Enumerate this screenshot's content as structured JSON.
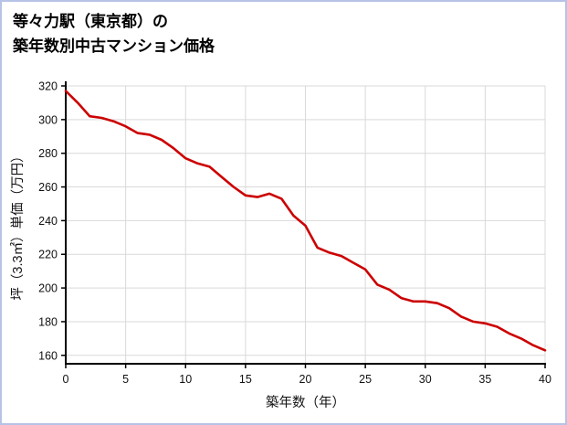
{
  "frame": {
    "border_color": "#b7c3e6"
  },
  "title": {
    "line1": "等々力駅（東京都）の",
    "line2": "築年数別中古マンション価格"
  },
  "chart_data": {
    "type": "line",
    "title": "等々力駅（東京都）の築年数別中古マンション価格",
    "xlabel": "築年数（年）",
    "ylabel": "坪（3.3㎡）単価（万円）",
    "x": [
      0,
      1,
      2,
      3,
      4,
      5,
      6,
      7,
      8,
      9,
      10,
      11,
      12,
      13,
      14,
      15,
      16,
      17,
      18,
      19,
      20,
      21,
      22,
      23,
      24,
      25,
      26,
      27,
      28,
      29,
      30,
      31,
      32,
      33,
      34,
      35,
      36,
      37,
      38,
      39,
      40
    ],
    "values": [
      317,
      310,
      302,
      301,
      299,
      296,
      292,
      291,
      288,
      283,
      277,
      274,
      272,
      266,
      260,
      255,
      254,
      256,
      253,
      243,
      237,
      224,
      221,
      219,
      215,
      211,
      202,
      199,
      194,
      192,
      192,
      191,
      188,
      183,
      180,
      179,
      177,
      173,
      170,
      166,
      163
    ],
    "xlim": [
      0,
      40
    ],
    "ylim": [
      155,
      320
    ],
    "xticks": [
      0,
      5,
      10,
      15,
      20,
      25,
      30,
      35,
      40
    ],
    "yticks": [
      160,
      180,
      200,
      220,
      240,
      260,
      280,
      300,
      320
    ],
    "grid": true,
    "grid_color": "#d9d9d9",
    "line_color": "#cc0000",
    "axis_color": "#000000",
    "tick_label_color": "#111111",
    "legend_position": "none"
  }
}
